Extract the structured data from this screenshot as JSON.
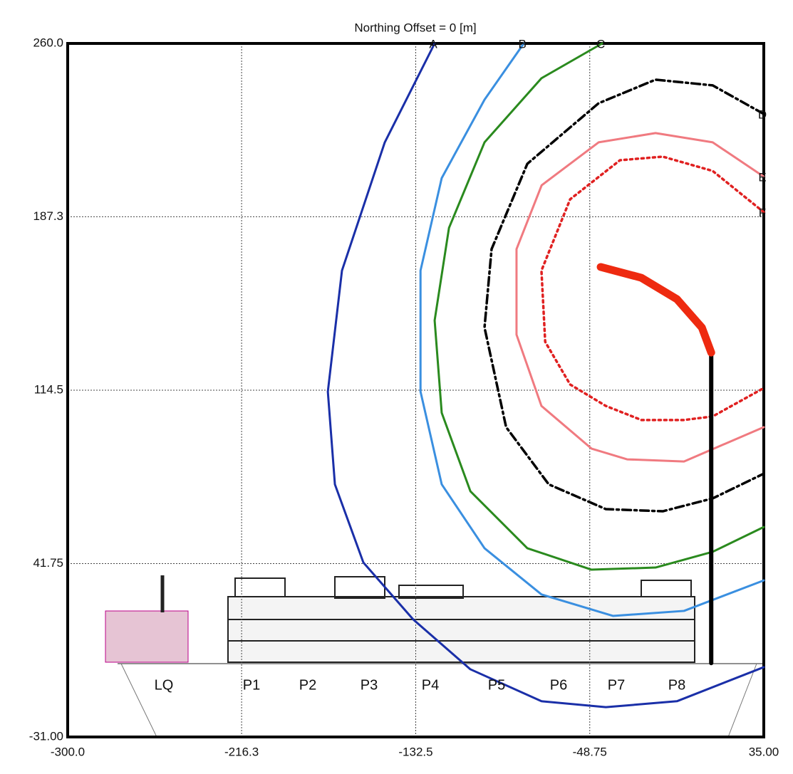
{
  "chart_data": {
    "type": "line",
    "title": "Northing Offset = 0 [m]",
    "xlim": [
      -300,
      35
    ],
    "ylim": [
      -31,
      260
    ],
    "xticks": [
      {
        "value": -300,
        "label": "-300.0"
      },
      -216.3,
      -132.5,
      -48.75,
      {
        "value": 35,
        "label": "35.00"
      }
    ],
    "yticks": [
      {
        "value": -31,
        "label": "-31.00"
      },
      41.75,
      114.5,
      187.3,
      {
        "value": 260,
        "label": "260.0"
      }
    ],
    "grid": true,
    "series": [
      {
        "name": "A",
        "color": "#1a2fa8",
        "style": "solid",
        "x": [
          -123.4,
          -147.4,
          -168,
          -174.8,
          -171.4,
          -157.7,
          -133.7,
          -106.2,
          -72,
          -41,
          -6.8,
          35
        ],
        "values": [
          260,
          218.5,
          164.7,
          113.9,
          75,
          42.2,
          18.3,
          -2.6,
          -16,
          -18.5,
          -16,
          -1.7
        ]
      },
      {
        "name": "B",
        "color": "#3a8fe0",
        "style": "solid",
        "x": [
          -80.5,
          -99.4,
          -120,
          -130.2,
          -130.2,
          -120,
          -99.4,
          -72,
          -37.6,
          -3.4,
          35
        ],
        "values": [
          260,
          236.4,
          203.5,
          164.7,
          113.9,
          75,
          48.2,
          28.8,
          19.8,
          21.9,
          34.7
        ]
      },
      {
        "name": "C",
        "color": "#2a8a1e",
        "style": "solid",
        "x": [
          -42.8,
          -72,
          -99.4,
          -116.5,
          -123.4,
          -120,
          -106.2,
          -78.8,
          -47.9,
          -17.1,
          10.4,
          35
        ],
        "values": [
          260,
          245.4,
          218.5,
          182.6,
          143.8,
          105,
          72.1,
          48.2,
          39.2,
          40.1,
          46.7,
          57.1
        ]
      },
      {
        "name": "D",
        "color": "#000000",
        "style": "dashdot",
        "x": [
          35,
          10.4,
          -17.1,
          -44.5,
          -78.8,
          -96,
          -99.4,
          -89,
          -68.5,
          -41,
          -13.6,
          10.4,
          35
        ],
        "values": [
          230.4,
          242.4,
          244.8,
          234.9,
          209.5,
          173.7,
          140.8,
          99,
          75,
          64.6,
          63.7,
          69.1,
          79.5
        ]
      },
      {
        "name": "E",
        "color": "#f07a80",
        "style": "solid",
        "x": [
          35,
          10.4,
          -17.1,
          -44.5,
          -71.9,
          -84,
          -84,
          -72,
          -47.9,
          -30.8,
          -3.4,
          35
        ],
        "values": [
          204.1,
          218.5,
          222.4,
          218.5,
          200.5,
          173.7,
          137.8,
          107.9,
          90,
          85.5,
          84.6,
          99
        ]
      },
      {
        "name": "F",
        "color": "#e02020",
        "style": "dotted",
        "x": [
          35,
          10.4,
          -13.6,
          -34.2,
          -58.2,
          -72,
          -70.2,
          -58.2,
          -41,
          -23.9,
          -3.4,
          10.4,
          35
        ],
        "values": [
          189.2,
          206.5,
          212.5,
          211,
          194.6,
          164.7,
          134.8,
          116.9,
          107.9,
          102,
          102,
          103.5,
          115.4
        ]
      }
    ],
    "plume": {
      "color": "#ee2a10",
      "x": [
        -43.5,
        -24,
        -6.8,
        5.2,
        9.7
      ],
      "values": [
        166.2,
        161.7,
        152.7,
        140.8,
        130.3
      ]
    },
    "stack": {
      "color": "#000000",
      "x": [
        9.7,
        9.7
      ],
      "values": [
        130.3,
        0
      ]
    },
    "modules": [
      "LQ",
      "P1",
      "P2",
      "P3",
      "P4",
      "P5",
      "P6",
      "P7",
      "P8"
    ]
  }
}
